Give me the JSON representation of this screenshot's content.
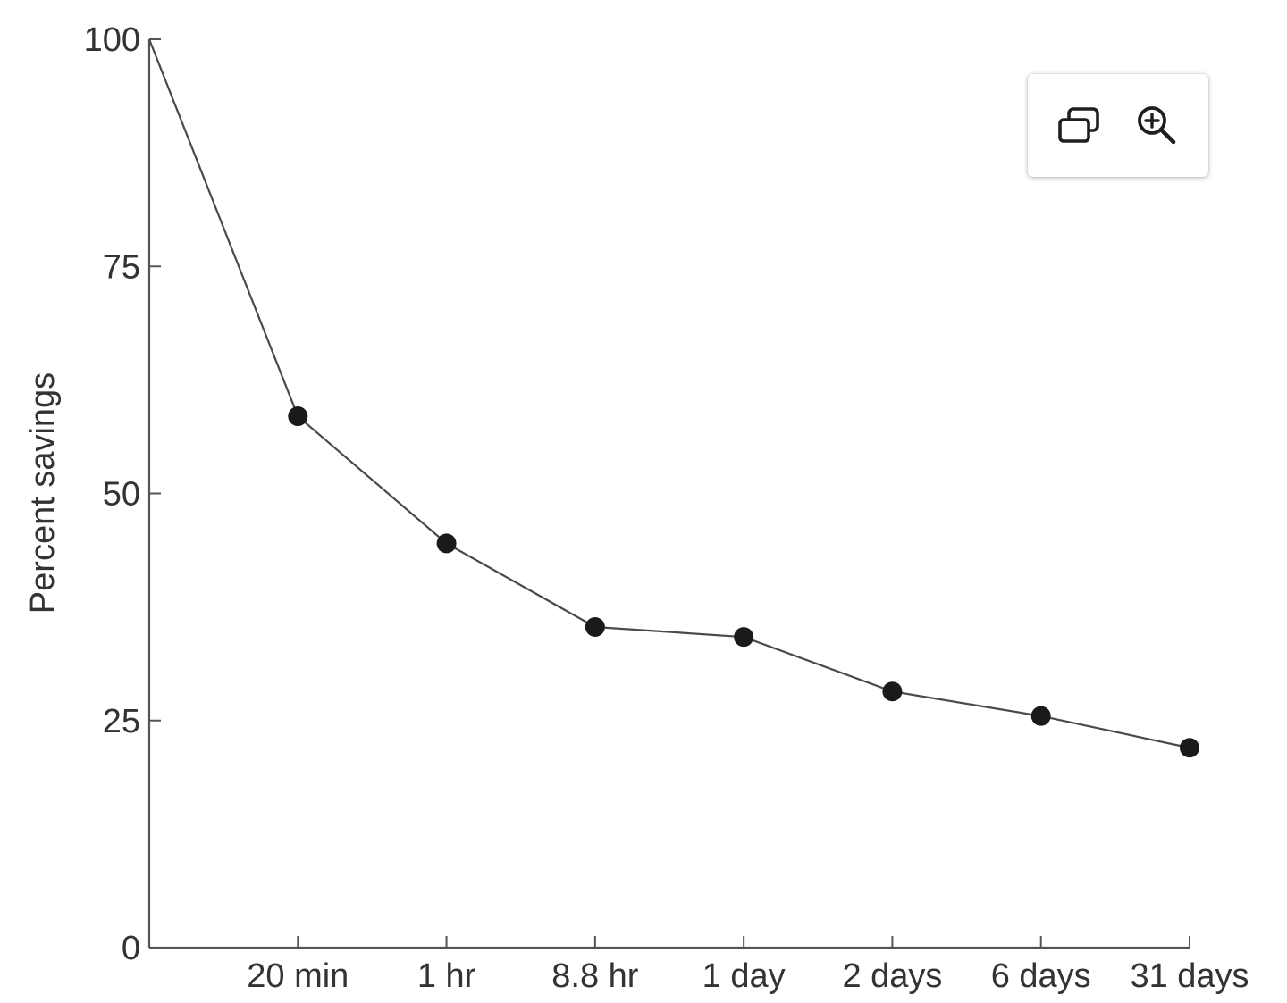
{
  "chart_data": {
    "type": "line",
    "title": "",
    "xlabel": "",
    "ylabel": "Percent savings",
    "ylim": [
      0,
      100
    ],
    "yticks": [
      0,
      25,
      50,
      75,
      100
    ],
    "categories": [
      "",
      "20 min",
      "1 hr",
      "8.8 hr",
      "1 day",
      "2 days",
      "6 days",
      "31 days"
    ],
    "series": [
      {
        "values": [
          100,
          58.5,
          44.5,
          35.3,
          34.2,
          28.2,
          25.5,
          22.0
        ],
        "markers": [
          false,
          true,
          true,
          true,
          true,
          true,
          true,
          true
        ]
      }
    ],
    "line_color": "#4a4a4a",
    "marker_color": "#1a1a1a",
    "grid": false,
    "legend": "none"
  },
  "toolbar": {
    "buttons": [
      {
        "icon": "copy-windows-icon"
      },
      {
        "icon": "zoom-in-icon"
      }
    ]
  }
}
